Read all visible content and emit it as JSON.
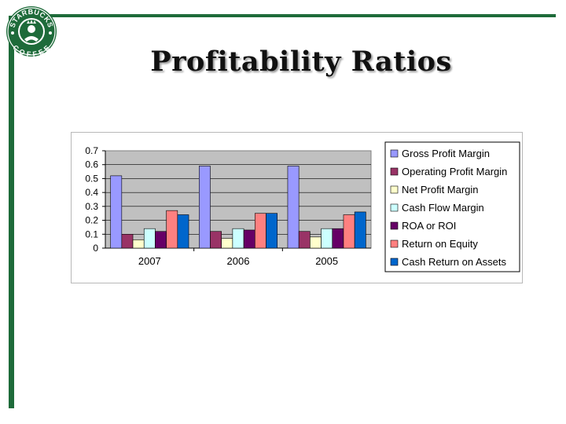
{
  "slide": {
    "title": "Profitability Ratios",
    "logo_text_top": "STARBUCKS",
    "logo_text_bottom": "COFFEE",
    "accent_color": "#1e6b3a"
  },
  "chart_data": {
    "type": "bar",
    "categories": [
      "2007",
      "2006",
      "2005"
    ],
    "ylim": [
      0,
      0.7
    ],
    "yticks": [
      "0",
      "0.1",
      "0.2",
      "0.3",
      "0.4",
      "0.5",
      "0.6",
      "0.7"
    ],
    "plot_background": "#c0c0c0",
    "grid": true,
    "legend_position": "right",
    "series": [
      {
        "name": "Gross Profit Margin",
        "color": "#9999ff",
        "values": [
          0.52,
          0.59,
          0.59
        ]
      },
      {
        "name": "Operating Profit Margin",
        "color": "#993366",
        "values": [
          0.1,
          0.12,
          0.12
        ]
      },
      {
        "name": "Net Profit Margin",
        "color": "#ffffcc",
        "values": [
          0.06,
          0.07,
          0.08
        ]
      },
      {
        "name": "Cash Flow Margin",
        "color": "#ccffff",
        "values": [
          0.14,
          0.14,
          0.14
        ]
      },
      {
        "name": "ROA or ROI",
        "color": "#660066",
        "values": [
          0.12,
          0.13,
          0.14
        ]
      },
      {
        "name": "Return on Equity",
        "color": "#ff8080",
        "values": [
          0.27,
          0.25,
          0.24
        ]
      },
      {
        "name": "Cash Return on Assets",
        "color": "#0066cc",
        "values": [
          0.24,
          0.25,
          0.26
        ]
      }
    ]
  }
}
